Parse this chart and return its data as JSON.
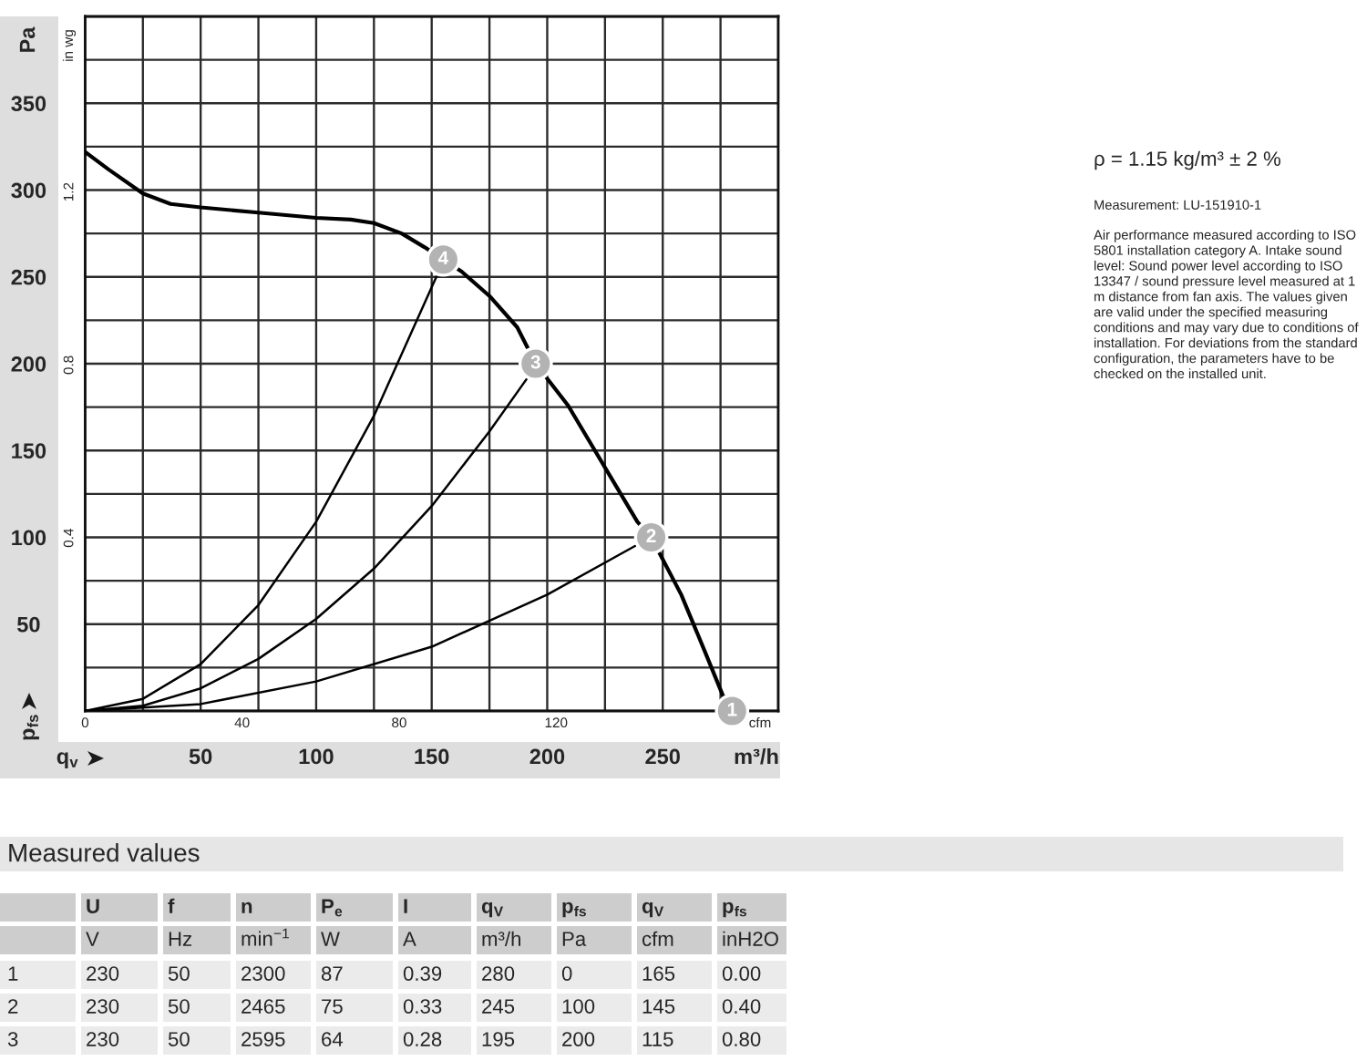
{
  "chart_data": [
    {
      "type": "line",
      "xlabel": "m³/h",
      "ylabel": "Pa",
      "x2label": "cfm",
      "y2label": "in wg",
      "annotations": [
        "q$_{v}$",
        "p$_{fs}$",
        "ρ = 1.15 kg/m³ ± 2 %",
        "Measurement: LU-151910-1",
        "Air performance measured according to ISO 5801 installation category A. Intake sound level: Sound power level according to ISO 13347 / sound pressure level measured at 1 m distance from fan axis. The values given are valid under the specified measuring conditions and may vary due to conditions of installation. For deviations from the standard configuration, the parameters have to be checked on the installed unit.",
        {
          "text": "1",
          "x": 280,
          "y": 0
        },
        {
          "text": "2",
          "x": 245,
          "y": 100
        },
        {
          "text": "3",
          "x": 195,
          "y": 200
        },
        {
          "text": "4",
          "x": 155,
          "y": 260
        }
      ],
      "series": [
        {
          "color": "#000000",
          "x": [
            0,
            10,
            25,
            37,
            50,
            75,
            100,
            115,
            125,
            137,
            147,
            155,
            163,
            175,
            187,
            195,
            209,
            226,
            239,
            245,
            258,
            268,
            276,
            280
          ],
          "values": [
            322,
            312,
            298,
            292,
            290,
            287,
            284,
            283,
            281,
            275,
            267,
            260,
            253,
            239,
            221,
            200,
            176,
            138,
            109,
            100,
            67,
            35,
            9,
            0
          ]
        },
        {
          "color": "#000000",
          "x": [
            0,
            25,
            50,
            75,
            100,
            125,
            152
          ],
          "values": [
            0,
            7,
            27,
            61,
            109,
            170,
            250
          ]
        },
        {
          "color": "#000000",
          "x": [
            0,
            25,
            50,
            75,
            100,
            125,
            150,
            175,
            191
          ],
          "values": [
            0,
            3,
            13,
            30,
            53,
            82,
            118,
            161,
            191
          ]
        },
        {
          "color": "#000000",
          "x": [
            0,
            50,
            100,
            150,
            200,
            238
          ],
          "values": [
            0,
            4,
            17,
            37,
            67,
            95
          ]
        }
      ],
      "xlim": [
        0,
        300
      ],
      "xticks": [
        {
          "value": 0,
          "label": null
        },
        {
          "value": 25,
          "label": null
        },
        50,
        {
          "value": 75,
          "label": null
        },
        100,
        {
          "value": 125,
          "label": null
        },
        150,
        {
          "value": 175,
          "label": null
        },
        200,
        {
          "value": 225,
          "label": null
        },
        250,
        {
          "value": 275,
          "label": null
        },
        {
          "value": 300,
          "label": null
        }
      ],
      "ylim": [
        0,
        400
      ],
      "yticks": [
        {
          "value": 0,
          "label": null
        },
        {
          "value": 25,
          "label": null
        },
        50,
        {
          "value": 75,
          "label": null
        },
        100,
        {
          "value": 125,
          "label": null
        },
        150,
        {
          "value": 175,
          "label": null
        },
        200,
        {
          "value": 225,
          "label": null
        },
        250,
        {
          "value": 275,
          "label": null
        },
        300,
        {
          "value": 325,
          "label": null
        },
        350,
        {
          "value": 375,
          "label": null
        },
        {
          "value": 400,
          "label": null
        }
      ],
      "x2lim": [
        0,
        176.6
      ],
      "x2ticks": [
        0,
        40,
        80,
        120
      ],
      "y2lim": [
        0,
        1.606
      ],
      "y2ticks": [
        0.4,
        0.8,
        1.2
      ],
      "grid": true,
      "line_style": "solid"
    },
    {
      "type": "other",
      "title": "Measured values",
      "annotations": [
        "U",
        "f",
        "n",
        "P$_{e}$",
        "I",
        "q$_{V}$",
        "p$_{fs}$",
        "q$_{V}$",
        "p$_{fs}$",
        "V",
        "Hz",
        "min$^{−1}$",
        "W",
        "A",
        "m³/h",
        "Pa",
        "cfm",
        "inH2O",
        "1",
        "230",
        "50",
        "2300",
        "87",
        "0.39",
        "280",
        "0",
        "165",
        "0.00",
        "2",
        "230",
        "50",
        "2465",
        "75",
        "0.33",
        "245",
        "100",
        "145",
        "0.40",
        "3",
        "230",
        "50",
        "2595",
        "64",
        "0.28",
        "195",
        "200",
        "115",
        "0.80"
      ]
    }
  ]
}
